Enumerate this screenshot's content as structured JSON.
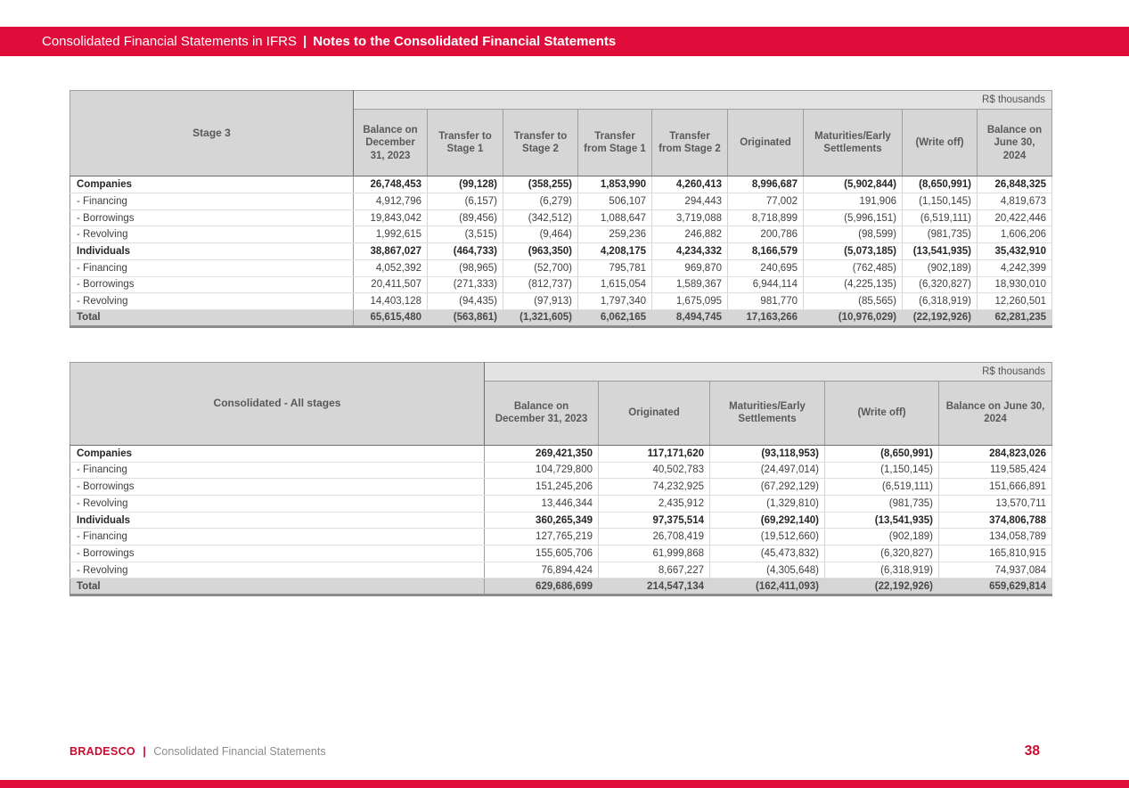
{
  "banner": {
    "title_regular": "Consolidated Financial Statements in IFRS",
    "separator": "|",
    "title_bold": "Notes to the Consolidated Financial Statements"
  },
  "colors": {
    "brand_red": "#E00C3A",
    "header_gray": "#D6D6D6",
    "unit_row_gray": "#E3E3E3"
  },
  "table_stage3": {
    "corner_label": "Stage 3",
    "unit_label": "R$ thousands",
    "columns": [
      "Balance on December 31, 2023",
      "Transfer to Stage 1",
      "Transfer to Stage 2",
      "Transfer from Stage 1",
      "Transfer from Stage 2",
      "Originated",
      "Maturities/Early Settlements",
      "(Write off)",
      "Balance on June 30, 2024"
    ],
    "rows": [
      {
        "label": "Companies",
        "style": "section",
        "values": [
          "26,748,453",
          "(99,128)",
          "(358,255)",
          "1,853,990",
          "4,260,413",
          "8,996,687",
          "(5,902,844)",
          "(8,650,991)",
          "26,848,325"
        ]
      },
      {
        "label": "- Financing",
        "style": "normal",
        "values": [
          "4,912,796",
          "(6,157)",
          "(6,279)",
          "506,107",
          "294,443",
          "77,002",
          "191,906",
          "(1,150,145)",
          "4,819,673"
        ]
      },
      {
        "label": "- Borrowings",
        "style": "normal",
        "values": [
          "19,843,042",
          "(89,456)",
          "(342,512)",
          "1,088,647",
          "3,719,088",
          "8,718,899",
          "(5,996,151)",
          "(6,519,111)",
          "20,422,446"
        ]
      },
      {
        "label": "- Revolving",
        "style": "normal",
        "values": [
          "1,992,615",
          "(3,515)",
          "(9,464)",
          "259,236",
          "246,882",
          "200,786",
          "(98,599)",
          "(981,735)",
          "1,606,206"
        ]
      },
      {
        "label": "Individuals",
        "style": "section",
        "values": [
          "38,867,027",
          "(464,733)",
          "(963,350)",
          "4,208,175",
          "4,234,332",
          "8,166,579",
          "(5,073,185)",
          "(13,541,935)",
          "35,432,910"
        ]
      },
      {
        "label": "- Financing",
        "style": "normal",
        "values": [
          "4,052,392",
          "(98,965)",
          "(52,700)",
          "795,781",
          "969,870",
          "240,695",
          "(762,485)",
          "(902,189)",
          "4,242,399"
        ]
      },
      {
        "label": "- Borrowings",
        "style": "normal",
        "values": [
          "20,411,507",
          "(271,333)",
          "(812,737)",
          "1,615,054",
          "1,589,367",
          "6,944,114",
          "(4,225,135)",
          "(6,320,827)",
          "18,930,010"
        ]
      },
      {
        "label": "- Revolving",
        "style": "normal",
        "values": [
          "14,403,128",
          "(94,435)",
          "(97,913)",
          "1,797,340",
          "1,675,095",
          "981,770",
          "(85,565)",
          "(6,318,919)",
          "12,260,501"
        ]
      },
      {
        "label": "Total",
        "style": "total",
        "values": [
          "65,615,480",
          "(563,861)",
          "(1,321,605)",
          "6,062,165",
          "8,494,745",
          "17,163,266",
          "(10,976,029)",
          "(22,192,926)",
          "62,281,235"
        ]
      }
    ]
  },
  "table_consolidated": {
    "corner_label": "Consolidated - All stages",
    "unit_label": "R$ thousands",
    "columns": [
      "Balance on December 31, 2023",
      "Originated",
      "Maturities/Early Settlements",
      "(Write off)",
      "Balance on June 30, 2024"
    ],
    "rows": [
      {
        "label": "Companies",
        "style": "section",
        "values": [
          "269,421,350",
          "117,171,620",
          "(93,118,953)",
          "(8,650,991)",
          "284,823,026"
        ]
      },
      {
        "label": "- Financing",
        "style": "normal",
        "values": [
          "104,729,800",
          "40,502,783",
          "(24,497,014)",
          "(1,150,145)",
          "119,585,424"
        ]
      },
      {
        "label": "- Borrowings",
        "style": "normal",
        "values": [
          "151,245,206",
          "74,232,925",
          "(67,292,129)",
          "(6,519,111)",
          "151,666,891"
        ]
      },
      {
        "label": "- Revolving",
        "style": "normal",
        "values": [
          "13,446,344",
          "2,435,912",
          "(1,329,810)",
          "(981,735)",
          "13,570,711"
        ]
      },
      {
        "label": "Individuals",
        "style": "section",
        "values": [
          "360,265,349",
          "97,375,514",
          "(69,292,140)",
          "(13,541,935)",
          "374,806,788"
        ]
      },
      {
        "label": "- Financing",
        "style": "normal",
        "values": [
          "127,765,219",
          "26,708,419",
          "(19,512,660)",
          "(902,189)",
          "134,058,789"
        ]
      },
      {
        "label": "- Borrowings",
        "style": "normal",
        "values": [
          "155,605,706",
          "61,999,868",
          "(45,473,832)",
          "(6,320,827)",
          "165,810,915"
        ]
      },
      {
        "label": "- Revolving",
        "style": "normal",
        "values": [
          "76,894,424",
          "8,667,227",
          "(4,305,648)",
          "(6,318,919)",
          "74,937,084"
        ]
      },
      {
        "label": "Total",
        "style": "total",
        "values": [
          "629,686,699",
          "214,547,134",
          "(162,411,093)",
          "(22,192,926)",
          "659,629,814"
        ]
      }
    ]
  },
  "footer": {
    "brand": "BRADESCO",
    "separator": "|",
    "label": "Consolidated Financial Statements",
    "page_number": "38"
  }
}
